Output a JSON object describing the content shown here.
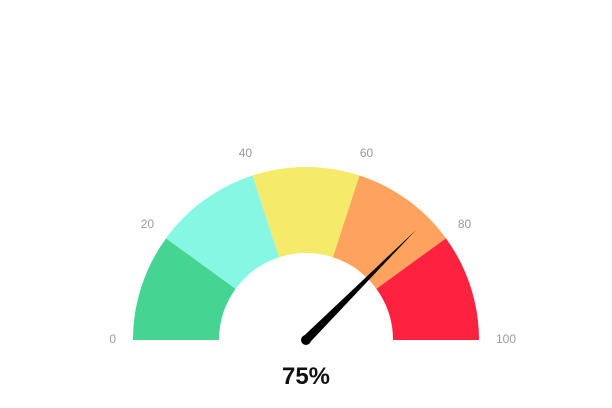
{
  "chart_data": {
    "type": "gauge",
    "min": 0,
    "max": 100,
    "value": 75,
    "value_label": "75%",
    "ticks": [
      {
        "value": 0,
        "label": "0"
      },
      {
        "value": 20,
        "label": "20"
      },
      {
        "value": 40,
        "label": "40"
      },
      {
        "value": 60,
        "label": "60"
      },
      {
        "value": 80,
        "label": "80"
      },
      {
        "value": 100,
        "label": "100"
      }
    ],
    "bands": [
      {
        "from": 0,
        "to": 20,
        "color": "#45d491"
      },
      {
        "from": 20,
        "to": 40,
        "color": "#86f7e2"
      },
      {
        "from": 40,
        "to": 60,
        "color": "#f5ea69"
      },
      {
        "from": 60,
        "to": 80,
        "color": "#fea35e"
      },
      {
        "from": 80,
        "to": 100,
        "color": "#fd233f"
      }
    ],
    "needle_color": "#000000"
  }
}
